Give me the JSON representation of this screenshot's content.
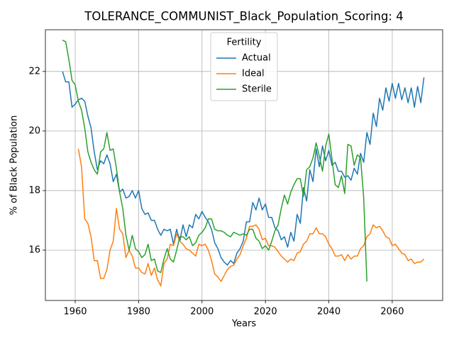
{
  "chart_data": {
    "type": "line",
    "title": "TOLERANCE_COMMUNIST_Black_Population_Scoring: 4",
    "x_label": "Years",
    "y_label": "% of Black Population",
    "legend_title": "Fertility",
    "legend_position": "upper center",
    "grid": true,
    "xlim": [
      1950.6,
      2075.9
    ],
    "ylim": [
      14.31,
      23.4
    ],
    "xticks": [
      1960,
      1980,
      2000,
      2020,
      2040,
      2060
    ],
    "yticks": [
      16,
      18,
      20,
      22
    ],
    "x": [
      1956,
      1957,
      1958,
      1959,
      1960,
      1961,
      1962,
      1963,
      1964,
      1965,
      1966,
      1967,
      1968,
      1969,
      1970,
      1971,
      1972,
      1973,
      1974,
      1975,
      1976,
      1977,
      1978,
      1979,
      1980,
      1981,
      1982,
      1983,
      1984,
      1985,
      1986,
      1987,
      1988,
      1989,
      1990,
      1991,
      1992,
      1993,
      1994,
      1995,
      1996,
      1997,
      1998,
      1999,
      2000,
      2001,
      2002,
      2003,
      2004,
      2005,
      2006,
      2007,
      2008,
      2009,
      2010,
      2011,
      2012,
      2013,
      2014,
      2015,
      2016,
      2017,
      2018,
      2019,
      2020,
      2021,
      2022,
      2023,
      2024,
      2025,
      2026,
      2027,
      2028,
      2029,
      2030,
      2031,
      2032,
      2033,
      2034,
      2035,
      2036,
      2037,
      2038,
      2039,
      2040,
      2041,
      2042,
      2043,
      2044,
      2045,
      2046,
      2047,
      2048,
      2049,
      2050,
      2051,
      2052,
      2053,
      2054,
      2055,
      2056,
      2057,
      2058,
      2059,
      2060,
      2061,
      2062,
      2063,
      2064,
      2065,
      2066,
      2067,
      2068,
      2069,
      2070
    ],
    "series": [
      {
        "name": "Actual",
        "color": "#1f77b4",
        "values": [
          22.0,
          21.65,
          21.65,
          20.8,
          20.9,
          21.05,
          21.1,
          21.0,
          20.5,
          20.1,
          19.3,
          18.7,
          19.0,
          18.9,
          19.2,
          18.9,
          18.3,
          18.55,
          17.95,
          18.05,
          17.75,
          17.8,
          18.0,
          17.75,
          18.0,
          17.4,
          17.2,
          17.25,
          17.0,
          17.0,
          16.7,
          16.5,
          16.7,
          16.65,
          16.7,
          16.2,
          16.7,
          16.3,
          16.85,
          16.45,
          16.85,
          16.75,
          17.2,
          17.05,
          17.3,
          17.1,
          16.95,
          16.7,
          16.25,
          16.05,
          15.75,
          15.6,
          15.5,
          15.65,
          15.55,
          15.9,
          16.05,
          16.3,
          16.95,
          16.95,
          17.6,
          17.35,
          17.75,
          17.35,
          17.55,
          17.1,
          17.1,
          16.75,
          16.65,
          16.35,
          16.45,
          16.1,
          16.6,
          16.3,
          17.2,
          16.9,
          18.1,
          17.65,
          18.7,
          18.3,
          19.4,
          18.8,
          19.5,
          19.0,
          19.35,
          18.85,
          18.95,
          18.65,
          18.65,
          18.45,
          18.5,
          18.35,
          18.75,
          18.55,
          19.25,
          18.95,
          19.95,
          19.55,
          20.6,
          20.15,
          21.1,
          20.7,
          21.45,
          21.0,
          21.6,
          21.1,
          21.6,
          21.05,
          21.45,
          20.95,
          21.45,
          20.8,
          21.5,
          20.95,
          21.8
        ]
      },
      {
        "name": "Ideal",
        "color": "#ff7f0e",
        "values": [
          null,
          null,
          null,
          null,
          null,
          19.4,
          18.8,
          17.05,
          16.9,
          16.45,
          15.65,
          15.65,
          15.05,
          15.05,
          15.35,
          16.0,
          16.3,
          17.4,
          16.7,
          16.55,
          15.75,
          16.0,
          15.8,
          15.4,
          15.4,
          15.25,
          15.2,
          15.55,
          15.15,
          15.4,
          15.0,
          14.8,
          15.55,
          15.7,
          16.2,
          16.15,
          16.55,
          16.3,
          16.2,
          16.05,
          16.0,
          15.9,
          15.8,
          16.2,
          16.15,
          16.2,
          16.0,
          15.65,
          15.2,
          15.1,
          14.95,
          15.15,
          15.35,
          15.45,
          15.5,
          15.7,
          15.85,
          16.15,
          16.4,
          16.8,
          16.8,
          16.85,
          16.7,
          16.35,
          16.4,
          16.15,
          16.15,
          16.1,
          15.95,
          15.8,
          15.7,
          15.6,
          15.7,
          15.65,
          15.9,
          15.95,
          16.2,
          16.3,
          16.55,
          16.55,
          16.75,
          16.55,
          16.55,
          16.45,
          16.2,
          16.05,
          15.8,
          15.8,
          15.85,
          15.65,
          15.85,
          15.7,
          15.8,
          15.8,
          16.05,
          16.15,
          16.45,
          16.55,
          16.85,
          16.75,
          16.8,
          16.65,
          16.45,
          16.4,
          16.15,
          16.2,
          16.05,
          15.9,
          15.85,
          15.65,
          15.7,
          15.55,
          15.6,
          15.6,
          15.7
        ]
      },
      {
        "name": "Sterile",
        "color": "#2ca02c",
        "values": [
          23.05,
          23.0,
          22.4,
          21.7,
          21.55,
          21.0,
          20.7,
          20.1,
          19.3,
          18.95,
          18.7,
          18.55,
          19.3,
          19.4,
          19.95,
          19.35,
          19.4,
          18.75,
          17.95,
          17.4,
          16.5,
          16.0,
          16.5,
          16.05,
          15.95,
          15.75,
          15.85,
          16.2,
          15.65,
          15.7,
          15.3,
          15.25,
          15.7,
          16.05,
          15.7,
          15.6,
          16.0,
          16.45,
          16.45,
          16.35,
          16.45,
          16.15,
          16.25,
          16.5,
          16.6,
          16.75,
          17.05,
          17.05,
          16.7,
          16.65,
          16.65,
          16.6,
          16.5,
          16.45,
          16.6,
          16.55,
          16.5,
          16.55,
          16.5,
          16.7,
          16.7,
          16.4,
          16.3,
          16.05,
          16.15,
          16.0,
          16.3,
          16.65,
          16.85,
          17.4,
          17.85,
          17.55,
          17.95,
          18.2,
          18.4,
          18.4,
          17.8,
          18.7,
          18.8,
          19.1,
          19.6,
          19.15,
          18.65,
          19.5,
          19.9,
          19.05,
          18.2,
          18.1,
          18.5,
          17.9,
          19.55,
          19.5,
          18.85,
          19.2,
          19.1,
          17.75,
          14.95,
          null,
          null,
          null,
          null,
          null,
          null,
          null,
          null,
          null,
          null,
          null,
          null,
          null,
          null,
          null,
          null,
          null,
          null
        ]
      }
    ]
  }
}
